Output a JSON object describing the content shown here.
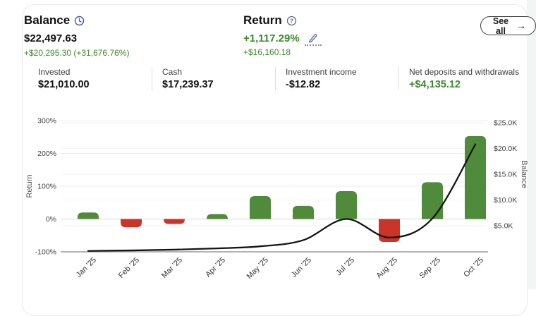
{
  "header": {
    "balance": {
      "title": "Balance",
      "value": "$22,497.63",
      "change": "+$20,295.30 (+31,676.76%)"
    },
    "return": {
      "title": "Return",
      "value": "+1,117.29%",
      "change": "+$16,160.18"
    },
    "see_all": {
      "label": "See all",
      "arrow": "→"
    }
  },
  "stats": {
    "items": [
      {
        "label": "Invested",
        "value": "$21,010.00"
      },
      {
        "label": "Cash",
        "value": "$17,239.37"
      },
      {
        "label": "Investment income",
        "value": "-$12.82"
      },
      {
        "label": "Net deposits and withdrawals",
        "value": "+$4,135.12"
      }
    ]
  },
  "icons": {
    "clock": "clock-icon",
    "question": "question-icon",
    "pencil": "pencil-icon"
  },
  "colors": {
    "green_text": "#3e8a2f",
    "bar_positive": "#4f8b3a",
    "bar_negative": "#cc3429",
    "line": "#141414",
    "grid_light": "#ececec",
    "grid_faint": "#f2f2f2",
    "grid_zero": "#d8d8d8",
    "grid_axis": "#b3b3b3",
    "tick_text": "#3f3f3f",
    "axis_title": "#555555"
  },
  "chart_data": {
    "type": "bar+line",
    "title": "",
    "categories": [
      "Jan '25",
      "Feb '25",
      "Mar '25",
      "Apr '25",
      "May '25",
      "Jun '25",
      "Jul '25",
      "Aug '25",
      "Sep '25",
      "Oct '25"
    ],
    "series": [
      {
        "name": "Return",
        "type": "bar",
        "axis": "left",
        "unit": "percent",
        "values": [
          20,
          -25,
          -15,
          15,
          70,
          40,
          85,
          -70,
          112,
          253
        ]
      },
      {
        "name": "Balance",
        "type": "line",
        "axis": "right",
        "unit": "usd",
        "values": [
          100,
          200,
          350,
          600,
          1000,
          2200,
          6300,
          2700,
          6400,
          20800
        ]
      }
    ],
    "left_axis": {
      "label": "Return",
      "tick_labels": [
        "300%",
        "200%",
        "100%",
        "0%",
        "-100%"
      ],
      "tick_values": [
        300,
        200,
        100,
        0,
        -100
      ],
      "range": [
        -100,
        300
      ]
    },
    "right_axis": {
      "label": "Balance",
      "tick_labels": [
        "$25.0K",
        "$20.0K",
        "$15.0K",
        "$10.0K",
        "$5.0K"
      ],
      "tick_values": [
        25000,
        20000,
        15000,
        10000,
        5000
      ],
      "range": [
        5000,
        25000
      ]
    },
    "grid": true,
    "legend": "none"
  }
}
